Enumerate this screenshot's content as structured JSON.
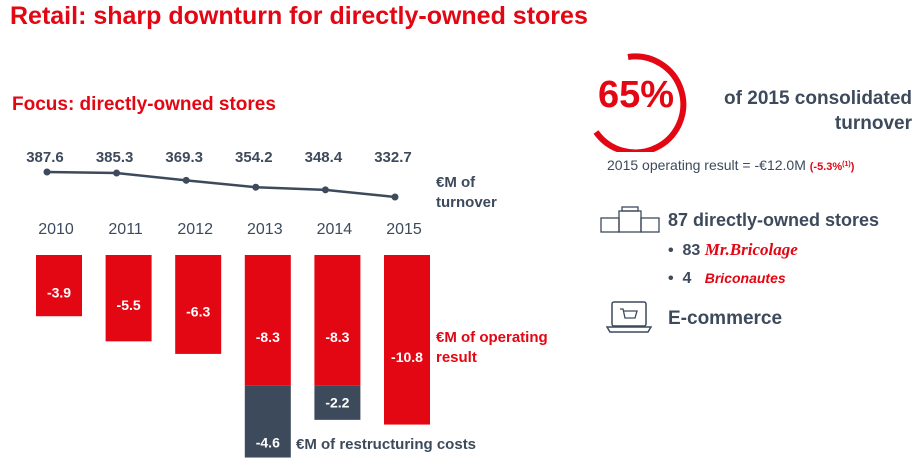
{
  "title": "Retail: sharp downturn for directly-owned stores",
  "chart_data": {
    "type": "bar",
    "title": "Focus: directly-owned stores",
    "categories": [
      "2010",
      "2011",
      "2012",
      "2013",
      "2014",
      "2015"
    ],
    "series": [
      {
        "name": "€M of turnover",
        "type": "line",
        "values": [
          387.6,
          385.3,
          369.3,
          354.2,
          348.4,
          332.7
        ],
        "labels": [
          "387.6",
          "385.3",
          "369.3",
          "354.2",
          "348.4",
          "332.7"
        ]
      },
      {
        "name": "€M of operating result",
        "values": [
          -3.9,
          -5.5,
          -6.3,
          -8.3,
          -8.3,
          -10.8
        ],
        "labels": [
          "-3.9",
          "-5.5",
          "-6.3",
          "-8.3",
          "-8.3",
          "-10.8"
        ]
      },
      {
        "name": "€M of restructuring costs",
        "values": [
          0,
          0,
          0,
          -4.6,
          -2.2,
          0
        ],
        "labels": [
          "",
          "",
          "",
          "-4.6",
          "-2.2",
          ""
        ]
      }
    ],
    "legend": {
      "turnover": [
        "€M of",
        "turnover"
      ],
      "operating": [
        "€M of operating",
        "result"
      ],
      "restructuring": "€M of restructuring costs"
    },
    "colors": {
      "red": "#e30613",
      "navy": "#3d4a5c"
    }
  },
  "side": {
    "percent": "65%",
    "percent_value": 65,
    "percent_text": [
      "of 2015 consolidated",
      "turnover"
    ],
    "op_result": "2015 operating result = -€12.0M",
    "op_pct": "(-5.3%",
    "op_note": "(1)",
    "op_close": ")",
    "stores": "87 directly-owned stores",
    "items": [
      {
        "bullet": "•",
        "count": "83",
        "brand": "Mr.Bricolage"
      },
      {
        "bullet": "•",
        "count": "4",
        "brand": "Briconautes"
      }
    ],
    "ecommerce": "E-commerce"
  }
}
